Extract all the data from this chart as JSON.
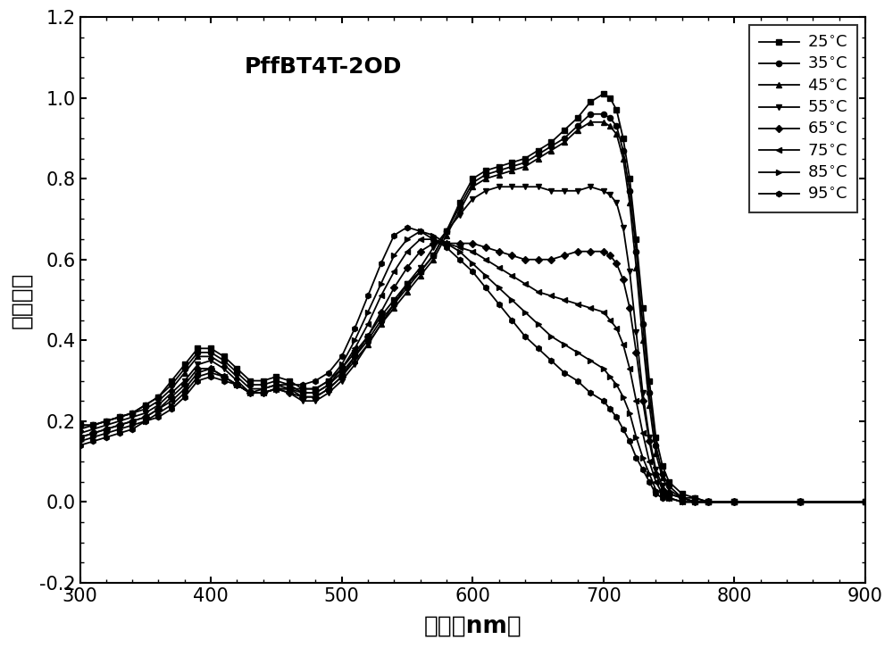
{
  "title": "PffBT4T-2OD",
  "xlabel": "波长（nm）",
  "ylabel": "吸收强度",
  "xlim": [
    300,
    900
  ],
  "ylim": [
    -0.2,
    1.2
  ],
  "xticks": [
    300,
    400,
    500,
    600,
    700,
    800,
    900
  ],
  "yticks": [
    -0.2,
    0.0,
    0.2,
    0.4,
    0.6,
    0.8,
    1.0,
    1.2
  ],
  "temperatures": [
    25,
    35,
    45,
    55,
    65,
    75,
    85,
    95
  ],
  "color": "#000000",
  "background": "#ffffff",
  "curves": {
    "25": {
      "x": [
        300,
        310,
        320,
        330,
        340,
        350,
        360,
        370,
        380,
        390,
        400,
        410,
        420,
        430,
        440,
        450,
        460,
        470,
        480,
        490,
        500,
        510,
        520,
        530,
        540,
        550,
        560,
        570,
        580,
        590,
        600,
        610,
        620,
        630,
        640,
        650,
        660,
        670,
        680,
        690,
        700,
        705,
        710,
        715,
        720,
        725,
        730,
        735,
        740,
        745,
        750,
        760,
        770,
        780,
        800,
        850,
        900
      ],
      "y": [
        0.19,
        0.19,
        0.2,
        0.21,
        0.22,
        0.24,
        0.26,
        0.3,
        0.34,
        0.38,
        0.38,
        0.36,
        0.33,
        0.3,
        0.3,
        0.31,
        0.3,
        0.28,
        0.28,
        0.3,
        0.33,
        0.37,
        0.41,
        0.46,
        0.5,
        0.54,
        0.57,
        0.61,
        0.67,
        0.74,
        0.8,
        0.82,
        0.83,
        0.84,
        0.85,
        0.87,
        0.89,
        0.92,
        0.95,
        0.99,
        1.01,
        1.0,
        0.97,
        0.9,
        0.8,
        0.65,
        0.48,
        0.3,
        0.16,
        0.09,
        0.05,
        0.02,
        0.01,
        0.0,
        0.0,
        0.0,
        0.0
      ]
    },
    "35": {
      "x": [
        300,
        310,
        320,
        330,
        340,
        350,
        360,
        370,
        380,
        390,
        400,
        410,
        420,
        430,
        440,
        450,
        460,
        470,
        480,
        490,
        500,
        510,
        520,
        530,
        540,
        550,
        560,
        570,
        580,
        590,
        600,
        610,
        620,
        630,
        640,
        650,
        660,
        670,
        680,
        690,
        700,
        705,
        710,
        715,
        720,
        725,
        730,
        735,
        740,
        745,
        750,
        760,
        770,
        780,
        800,
        850,
        900
      ],
      "y": [
        0.19,
        0.19,
        0.2,
        0.21,
        0.22,
        0.24,
        0.26,
        0.29,
        0.33,
        0.37,
        0.37,
        0.35,
        0.32,
        0.29,
        0.29,
        0.3,
        0.29,
        0.27,
        0.27,
        0.29,
        0.32,
        0.36,
        0.4,
        0.45,
        0.49,
        0.53,
        0.57,
        0.61,
        0.67,
        0.73,
        0.79,
        0.81,
        0.82,
        0.83,
        0.84,
        0.86,
        0.88,
        0.9,
        0.93,
        0.96,
        0.96,
        0.95,
        0.93,
        0.87,
        0.77,
        0.62,
        0.44,
        0.27,
        0.14,
        0.07,
        0.04,
        0.01,
        0.01,
        0.0,
        0.0,
        0.0,
        0.0
      ]
    },
    "45": {
      "x": [
        300,
        310,
        320,
        330,
        340,
        350,
        360,
        370,
        380,
        390,
        400,
        410,
        420,
        430,
        440,
        450,
        460,
        470,
        480,
        490,
        500,
        510,
        520,
        530,
        540,
        550,
        560,
        570,
        580,
        590,
        600,
        610,
        620,
        630,
        640,
        650,
        660,
        670,
        680,
        690,
        700,
        705,
        710,
        715,
        720,
        725,
        730,
        735,
        740,
        745,
        750,
        760,
        770,
        780,
        800,
        850,
        900
      ],
      "y": [
        0.18,
        0.19,
        0.2,
        0.21,
        0.22,
        0.23,
        0.25,
        0.28,
        0.32,
        0.36,
        0.36,
        0.34,
        0.31,
        0.28,
        0.28,
        0.29,
        0.28,
        0.26,
        0.26,
        0.28,
        0.31,
        0.35,
        0.39,
        0.44,
        0.48,
        0.52,
        0.56,
        0.6,
        0.66,
        0.72,
        0.78,
        0.8,
        0.81,
        0.82,
        0.83,
        0.85,
        0.87,
        0.89,
        0.92,
        0.94,
        0.94,
        0.93,
        0.91,
        0.85,
        0.74,
        0.58,
        0.4,
        0.24,
        0.12,
        0.06,
        0.03,
        0.01,
        0.0,
        0.0,
        0.0,
        0.0,
        0.0
      ]
    },
    "55": {
      "x": [
        300,
        310,
        320,
        330,
        340,
        350,
        360,
        370,
        380,
        390,
        400,
        410,
        420,
        430,
        440,
        450,
        460,
        470,
        480,
        490,
        500,
        510,
        520,
        530,
        540,
        550,
        560,
        570,
        580,
        590,
        600,
        610,
        620,
        630,
        640,
        650,
        660,
        670,
        680,
        690,
        700,
        705,
        710,
        715,
        720,
        725,
        730,
        735,
        740,
        745,
        750,
        760,
        770,
        780,
        800,
        850,
        900
      ],
      "y": [
        0.17,
        0.18,
        0.19,
        0.2,
        0.21,
        0.22,
        0.24,
        0.27,
        0.3,
        0.34,
        0.35,
        0.33,
        0.3,
        0.27,
        0.27,
        0.28,
        0.27,
        0.25,
        0.25,
        0.27,
        0.3,
        0.34,
        0.39,
        0.44,
        0.49,
        0.54,
        0.58,
        0.63,
        0.67,
        0.71,
        0.75,
        0.77,
        0.78,
        0.78,
        0.78,
        0.78,
        0.77,
        0.77,
        0.77,
        0.78,
        0.77,
        0.76,
        0.74,
        0.68,
        0.57,
        0.42,
        0.27,
        0.16,
        0.08,
        0.04,
        0.02,
        0.01,
        0.0,
        0.0,
        0.0,
        0.0,
        0.0
      ]
    },
    "65": {
      "x": [
        300,
        310,
        320,
        330,
        340,
        350,
        360,
        370,
        380,
        390,
        400,
        410,
        420,
        430,
        440,
        450,
        460,
        470,
        480,
        490,
        500,
        510,
        520,
        530,
        540,
        550,
        560,
        570,
        580,
        590,
        600,
        610,
        620,
        630,
        640,
        650,
        660,
        670,
        680,
        690,
        700,
        705,
        710,
        715,
        720,
        725,
        730,
        735,
        740,
        745,
        750,
        760,
        770,
        780,
        800,
        850,
        900
      ],
      "y": [
        0.16,
        0.17,
        0.18,
        0.19,
        0.2,
        0.21,
        0.23,
        0.26,
        0.29,
        0.33,
        0.33,
        0.31,
        0.29,
        0.27,
        0.27,
        0.28,
        0.27,
        0.26,
        0.26,
        0.28,
        0.31,
        0.36,
        0.41,
        0.47,
        0.53,
        0.58,
        0.62,
        0.64,
        0.64,
        0.64,
        0.64,
        0.63,
        0.62,
        0.61,
        0.6,
        0.6,
        0.6,
        0.61,
        0.62,
        0.62,
        0.62,
        0.61,
        0.59,
        0.55,
        0.48,
        0.37,
        0.25,
        0.15,
        0.07,
        0.03,
        0.02,
        0.01,
        0.0,
        0.0,
        0.0,
        0.0,
        0.0
      ]
    },
    "75": {
      "x": [
        300,
        310,
        320,
        330,
        340,
        350,
        360,
        370,
        380,
        390,
        400,
        410,
        420,
        430,
        440,
        450,
        460,
        470,
        480,
        490,
        500,
        510,
        520,
        530,
        540,
        550,
        560,
        570,
        580,
        590,
        600,
        610,
        620,
        630,
        640,
        650,
        660,
        670,
        680,
        690,
        700,
        705,
        710,
        715,
        720,
        725,
        730,
        735,
        740,
        745,
        750,
        760,
        770,
        780,
        800,
        850,
        900
      ],
      "y": [
        0.16,
        0.17,
        0.18,
        0.19,
        0.2,
        0.21,
        0.23,
        0.25,
        0.28,
        0.32,
        0.33,
        0.31,
        0.29,
        0.27,
        0.27,
        0.28,
        0.28,
        0.27,
        0.27,
        0.29,
        0.33,
        0.38,
        0.44,
        0.51,
        0.57,
        0.62,
        0.65,
        0.65,
        0.64,
        0.63,
        0.62,
        0.6,
        0.58,
        0.56,
        0.54,
        0.52,
        0.51,
        0.5,
        0.49,
        0.48,
        0.47,
        0.45,
        0.43,
        0.39,
        0.33,
        0.25,
        0.17,
        0.1,
        0.05,
        0.02,
        0.01,
        0.0,
        0.0,
        0.0,
        0.0,
        0.0,
        0.0
      ]
    },
    "85": {
      "x": [
        300,
        310,
        320,
        330,
        340,
        350,
        360,
        370,
        380,
        390,
        400,
        410,
        420,
        430,
        440,
        450,
        460,
        470,
        480,
        490,
        500,
        510,
        520,
        530,
        540,
        550,
        560,
        570,
        580,
        590,
        600,
        610,
        620,
        630,
        640,
        650,
        660,
        670,
        680,
        690,
        700,
        705,
        710,
        715,
        720,
        725,
        730,
        735,
        740,
        745,
        750,
        760,
        770,
        780,
        800,
        850,
        900
      ],
      "y": [
        0.15,
        0.16,
        0.17,
        0.18,
        0.19,
        0.2,
        0.22,
        0.24,
        0.27,
        0.31,
        0.32,
        0.31,
        0.29,
        0.27,
        0.27,
        0.28,
        0.28,
        0.28,
        0.28,
        0.3,
        0.34,
        0.4,
        0.47,
        0.54,
        0.61,
        0.65,
        0.67,
        0.66,
        0.64,
        0.62,
        0.59,
        0.56,
        0.53,
        0.5,
        0.47,
        0.44,
        0.41,
        0.39,
        0.37,
        0.35,
        0.33,
        0.31,
        0.29,
        0.26,
        0.22,
        0.16,
        0.11,
        0.07,
        0.03,
        0.02,
        0.01,
        0.0,
        0.0,
        0.0,
        0.0,
        0.0,
        0.0
      ]
    },
    "95": {
      "x": [
        300,
        310,
        320,
        330,
        340,
        350,
        360,
        370,
        380,
        390,
        400,
        410,
        420,
        430,
        440,
        450,
        460,
        470,
        480,
        490,
        500,
        510,
        520,
        530,
        540,
        550,
        560,
        570,
        580,
        590,
        600,
        610,
        620,
        630,
        640,
        650,
        660,
        670,
        680,
        690,
        700,
        705,
        710,
        715,
        720,
        725,
        730,
        735,
        740,
        745,
        750,
        760,
        770,
        780,
        800,
        850,
        900
      ],
      "y": [
        0.14,
        0.15,
        0.16,
        0.17,
        0.18,
        0.2,
        0.21,
        0.23,
        0.26,
        0.3,
        0.31,
        0.3,
        0.29,
        0.27,
        0.28,
        0.29,
        0.29,
        0.29,
        0.3,
        0.32,
        0.36,
        0.43,
        0.51,
        0.59,
        0.66,
        0.68,
        0.67,
        0.65,
        0.63,
        0.6,
        0.57,
        0.53,
        0.49,
        0.45,
        0.41,
        0.38,
        0.35,
        0.32,
        0.3,
        0.27,
        0.25,
        0.23,
        0.21,
        0.18,
        0.15,
        0.11,
        0.08,
        0.05,
        0.02,
        0.01,
        0.01,
        0.0,
        0.0,
        0.0,
        0.0,
        0.0,
        0.0
      ]
    }
  }
}
